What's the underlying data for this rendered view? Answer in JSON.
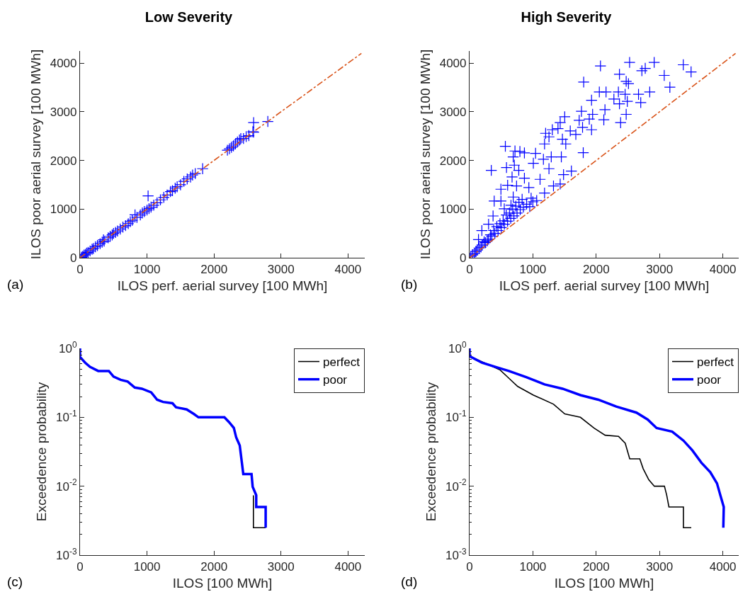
{
  "chart_data": [
    {
      "type": "scatter",
      "title": "Low Severity",
      "xlabel": "ILOS perf. aerial survey [100 MWh]",
      "ylabel": "ILOS poor aerial survey [100 MWh]",
      "annotations": [
        "(a)"
      ],
      "xlim": [
        0,
        4250
      ],
      "ylim": [
        0,
        4250
      ],
      "xticks": [
        0,
        1000,
        2000,
        3000,
        4000
      ],
      "yticks": [
        0,
        1000,
        2000,
        3000,
        4000
      ],
      "grid": false,
      "legend": false,
      "series": [
        {
          "marker": "cross",
          "color": "#0000ff",
          "x": [
            20,
            40,
            60,
            80,
            100,
            120,
            150,
            180,
            200,
            230,
            260,
            300,
            330,
            360,
            350,
            420,
            450,
            480,
            500,
            530,
            560,
            600,
            640,
            680,
            720,
            750,
            780,
            821,
            850,
            900,
            930,
            960,
            1000,
            1016,
            1030,
            1060,
            1100,
            1150,
            1200,
            1250,
            1300,
            1350,
            1380,
            1420,
            1450,
            1500,
            1550,
            1600,
            1650,
            1680,
            1720,
            1830,
            2200,
            2230,
            2260,
            2290,
            2320,
            2350,
            2380,
            2400,
            2440,
            2480,
            2520,
            2580,
            2591,
            2591,
            2803
          ],
          "values": [
            10,
            30,
            55,
            70,
            95,
            110,
            140,
            175,
            190,
            225,
            250,
            290,
            320,
            340,
            370,
            410,
            440,
            470,
            500,
            520,
            550,
            590,
            630,
            660,
            700,
            740,
            770,
            883,
            830,
            880,
            920,
            950,
            980,
            1272,
            1010,
            1040,
            1080,
            1130,
            1190,
            1240,
            1290,
            1360,
            1380,
            1430,
            1460,
            1500,
            1570,
            1620,
            1660,
            1700,
            1730,
            1830,
            2210,
            2240,
            2270,
            2300,
            2340,
            2380,
            2420,
            2450,
            2450,
            2490,
            2510,
            2590,
            2583,
            2777,
            2801
          ]
        },
        {
          "type": "line",
          "line_style": "dashed",
          "color": "#d95319",
          "x": [
            0,
            4200
          ],
          "values": [
            0,
            4200
          ]
        }
      ]
    },
    {
      "type": "scatter",
      "title": "High Severity",
      "xlabel": "ILOS perf. aerial survey [100 MWh]",
      "ylabel": "ILOS poor aerial survey [100 MWh]",
      "annotations": [
        "(b)"
      ],
      "xlim": [
        0,
        4250
      ],
      "ylim": [
        0,
        4250
      ],
      "xticks": [
        0,
        1000,
        2000,
        3000,
        4000
      ],
      "yticks": [
        0,
        1000,
        2000,
        3000,
        4000
      ],
      "grid": false,
      "legend": false,
      "series": [
        {
          "marker": "cross",
          "color": "#0000ff",
          "x": [
            343,
            565,
            583,
            717,
            795,
            866,
            689,
            707,
            777,
            671,
            866,
            601,
            742,
            495,
            936,
            389,
            495,
            689,
            548,
            654,
            371,
            300,
            194,
            141,
            972,
            1042,
            1007,
            1166,
            1290,
            1254,
            1113,
            1184,
            1325,
            1060,
            1201,
            1254,
            1307,
            1396,
            1431,
            1502,
            1466,
            1519,
            1449,
            1484,
            1431,
            1184,
            1608,
            1590,
            1678,
            1767,
            1731,
            1784,
            1926,
            1890,
            1943,
            1926,
            1795,
            1802,
            2067,
            2049,
            2155,
            2138,
            2120,
            2279,
            2367,
            2350,
            2367,
            2456,
            2473,
            2509,
            2527,
            2473,
            2385,
            2491,
            2668,
            2703,
            2774,
            2721,
            2845,
            2915,
            3074,
            3163,
            3375,
            3498,
            20,
            50,
            80,
            100,
            120,
            150,
            180,
            200,
            230,
            250,
            280,
            300,
            330,
            350,
            380,
            400,
            430,
            450,
            480,
            500,
            530,
            550,
            580,
            600,
            630,
            650,
            680,
            700,
            730,
            750,
            780,
            800,
            830,
            850,
            900,
            950,
            1000
          ],
          "values": [
            1796,
            2291,
            1854,
            2194,
            2184,
            2155,
            2073,
            1903,
            1796,
            1660,
            1636,
            1490,
            1476,
            1408,
            1442,
            1165,
            1165,
            1248,
            1005,
            1078,
            859,
            689,
            558,
            374,
            1223,
            2146,
            1942,
            2024,
            2073,
            1830,
            1612,
            1330,
            1476,
            1175,
            2558,
            2485,
            2631,
            2655,
            2777,
            2898,
            2437,
            2340,
            2073,
            1709,
            1515,
            2340,
            1782,
            2607,
            2534,
            3010,
            2825,
            2680,
            2631,
            2850,
            2947,
            3238,
            2160,
            3612,
            3942,
            3408,
            3408,
            3044,
            2835,
            3262,
            3772,
            3408,
            3165,
            3359,
            3626,
            3578,
            4015,
            2947,
            2777,
            3214,
            3359,
            3189,
            3893,
            3845,
            3408,
            4015,
            3748,
            3505,
            3966,
            3820,
            30,
            60,
            90,
            130,
            160,
            200,
            220,
            260,
            330,
            310,
            350,
            380,
            470,
            440,
            560,
            500,
            640,
            560,
            700,
            620,
            760,
            690,
            880,
            750,
            920,
            810,
            1000,
            860,
            1060,
            920,
            1140,
            990,
            1200,
            1040,
            1100,
            1050,
            1150
          ]
        },
        {
          "type": "line",
          "line_style": "dashed",
          "color": "#d95319",
          "x": [
            0,
            4200
          ],
          "values": [
            0,
            4200
          ]
        }
      ]
    },
    {
      "type": "line",
      "xlabel": "ILOS [100 MWh]",
      "ylabel": "Exceedence probability",
      "annotations": [
        "(c)"
      ],
      "log": "y",
      "xlim": [
        0,
        4250
      ],
      "ylim": [
        0.001,
        1
      ],
      "xticks": [
        0,
        1000,
        2000,
        3000,
        4000
      ],
      "yticks": [
        {
          "value": 0.001,
          "label": "10$^{-3}$"
        },
        {
          "value": 0.01,
          "label": "10$^{-2}$"
        },
        {
          "value": 0.1,
          "label": "10$^{-1}$"
        },
        {
          "value": 1,
          "label": "10$^{0}$"
        }
      ],
      "grid": false,
      "legend": "top right",
      "series": [
        {
          "name": "perfect",
          "color": "#000000",
          "x": [
            2588,
            2588,
            2771
          ],
          "values": [
            0.0074,
            0.0025,
            0.0025
          ]
        },
        {
          "name": "poor",
          "color": "#0000ff",
          "x": [
            0,
            0,
            77,
            148,
            271,
            430,
            500,
            606,
            711,
            817,
            923,
            1063,
            1151,
            1239,
            1380,
            1433,
            1592,
            1697,
            1768,
            2155,
            2225,
            2296,
            2331,
            2384,
            2437,
            2560,
            2577,
            2630,
            2630,
            2771,
            2771
          ],
          "values": [
            1,
            0.75,
            0.62,
            0.54,
            0.47,
            0.47,
            0.39,
            0.35,
            0.33,
            0.27,
            0.26,
            0.23,
            0.18,
            0.167,
            0.16,
            0.14,
            0.13,
            0.112,
            0.1,
            0.1,
            0.085,
            0.07,
            0.051,
            0.039,
            0.015,
            0.015,
            0.0098,
            0.0074,
            0.005,
            0.005,
            0.0025
          ]
        }
      ]
    },
    {
      "type": "line",
      "xlabel": "ILOS [100 MWh]",
      "ylabel": "Exceedence probability",
      "annotations": [
        "(d)"
      ],
      "log": "y",
      "xlim": [
        0,
        4250
      ],
      "ylim": [
        0.001,
        1
      ],
      "xticks": [
        0,
        1000,
        2000,
        3000,
        4000
      ],
      "yticks": [
        {
          "value": 0.001,
          "label": "10$^{-3}$"
        },
        {
          "value": 0.01,
          "label": "10$^{-2}$"
        },
        {
          "value": 0.1,
          "label": "10$^{-1}$"
        },
        {
          "value": 1,
          "label": "10$^{0}$"
        }
      ],
      "grid": false,
      "legend": "top right",
      "series": [
        {
          "name": "perfect",
          "color": "#000000",
          "x": [
            0,
            478,
            619,
            760,
            1008,
            1326,
            1503,
            1750,
            1963,
            2140,
            2352,
            2458,
            2529,
            2688,
            2741,
            2830,
            2918,
            3077,
            3113,
            3148,
            3377,
            3377,
            3501
          ],
          "values": [
            0.77,
            0.49,
            0.37,
            0.28,
            0.21,
            0.155,
            0.112,
            0.1,
            0.07,
            0.055,
            0.053,
            0.042,
            0.025,
            0.025,
            0.018,
            0.0124,
            0.01,
            0.01,
            0.0074,
            0.005,
            0.005,
            0.0025,
            0.0025
          ]
        },
        {
          "name": "poor",
          "color": "#0000ff",
          "x": [
            0,
            0,
            195,
            407,
            619,
            902,
            1185,
            1468,
            1750,
            2033,
            2316,
            2635,
            2812,
            2953,
            3200,
            3377,
            3519,
            3660,
            3801,
            3907,
            3960,
            4014,
            4007
          ],
          "values": [
            1,
            0.77,
            0.62,
            0.54,
            0.47,
            0.38,
            0.3,
            0.26,
            0.21,
            0.18,
            0.143,
            0.117,
            0.093,
            0.07,
            0.062,
            0.046,
            0.033,
            0.022,
            0.016,
            0.011,
            0.0074,
            0.005,
            0.0025
          ]
        }
      ]
    }
  ]
}
